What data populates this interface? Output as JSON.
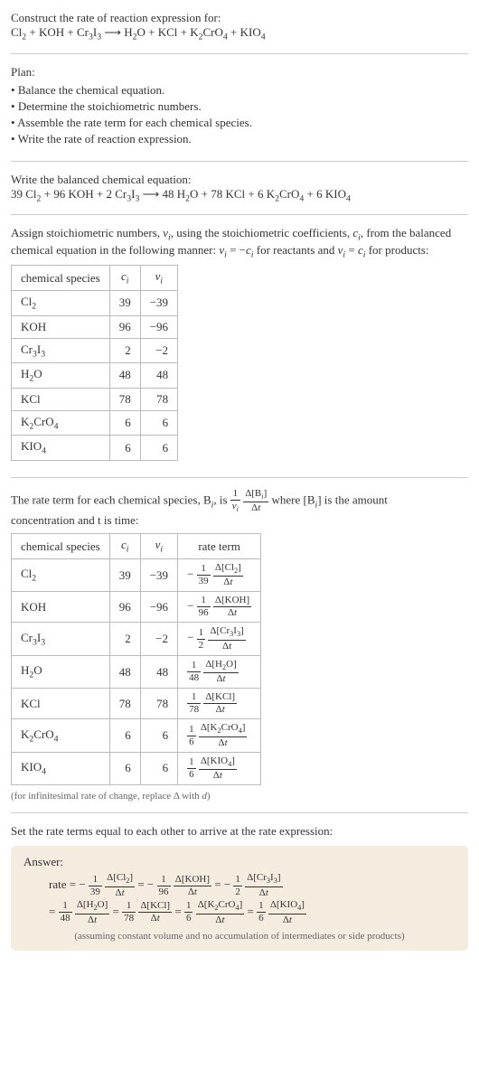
{
  "header": {
    "title": "Construct the rate of reaction expression for:",
    "equation_html": "Cl<sub>2</sub> + KOH + Cr<sub>3</sub>I<sub>3</sub>  ⟶  H<sub>2</sub>O + KCl + K<sub>2</sub>CrO<sub>4</sub> + KIO<sub>4</sub>"
  },
  "plan": {
    "heading": "Plan:",
    "items": [
      "Balance the chemical equation.",
      "Determine the stoichiometric numbers.",
      "Assemble the rate term for each chemical species.",
      "Write the rate of reaction expression."
    ]
  },
  "balanced": {
    "heading": "Write the balanced chemical equation:",
    "equation_html": "39 Cl<sub>2</sub> + 96 KOH + 2 Cr<sub>3</sub>I<sub>3</sub>  ⟶  48 H<sub>2</sub>O + 78 KCl + 6 K<sub>2</sub>CrO<sub>4</sub> + 6 KIO<sub>4</sub>"
  },
  "stoich": {
    "intro_html": "Assign stoichiometric numbers, <i>ν<sub>i</sub></i>, using the stoichiometric coefficients, <i>c<sub>i</sub></i>, from the balanced chemical equation in the following manner: <i>ν<sub>i</sub></i> = −<i>c<sub>i</sub></i> for reactants and <i>ν<sub>i</sub></i> = <i>c<sub>i</sub></i> for products:",
    "columns": [
      "chemical species",
      "c_i",
      "ν_i"
    ],
    "rows": [
      {
        "species_html": "Cl<sub>2</sub>",
        "c": "39",
        "v": "−39"
      },
      {
        "species_html": "KOH",
        "c": "96",
        "v": "−96"
      },
      {
        "species_html": "Cr<sub>3</sub>I<sub>3</sub>",
        "c": "2",
        "v": "−2"
      },
      {
        "species_html": "H<sub>2</sub>O",
        "c": "48",
        "v": "48"
      },
      {
        "species_html": "KCl",
        "c": "78",
        "v": "78"
      },
      {
        "species_html": "K<sub>2</sub>CrO<sub>4</sub>",
        "c": "6",
        "v": "6"
      },
      {
        "species_html": "KIO<sub>4</sub>",
        "c": "6",
        "v": "6"
      }
    ]
  },
  "rate_intro": {
    "line1_html": "The rate term for each chemical species, B<sub><i>i</i></sub>, is <span class=\"frac\"><span class=\"num\">1</span><span class=\"den\"><i>ν<sub>i</sub></i></span></span> <span class=\"frac\"><span class=\"num\">Δ[B<sub><i>i</i></sub>]</span><span class=\"den\">Δ<i>t</i></span></span> where [B<sub><i>i</i></sub>] is the amount",
    "line2": "concentration and t is time:",
    "columns": [
      "chemical species",
      "c_i",
      "ν_i",
      "rate term"
    ],
    "rows": [
      {
        "species_html": "Cl<sub>2</sub>",
        "c": "39",
        "v": "−39",
        "term_html": "− <span class=\"frac\"><span class=\"num\">1</span><span class=\"den\">39</span></span> <span class=\"frac\"><span class=\"num\">Δ[Cl<sub>2</sub>]</span><span class=\"den\">Δ<i>t</i></span></span>"
      },
      {
        "species_html": "KOH",
        "c": "96",
        "v": "−96",
        "term_html": "− <span class=\"frac\"><span class=\"num\">1</span><span class=\"den\">96</span></span> <span class=\"frac\"><span class=\"num\">Δ[KOH]</span><span class=\"den\">Δ<i>t</i></span></span>"
      },
      {
        "species_html": "Cr<sub>3</sub>I<sub>3</sub>",
        "c": "2",
        "v": "−2",
        "term_html": "− <span class=\"frac\"><span class=\"num\">1</span><span class=\"den\">2</span></span> <span class=\"frac\"><span class=\"num\">Δ[Cr<sub>3</sub>I<sub>3</sub>]</span><span class=\"den\">Δ<i>t</i></span></span>"
      },
      {
        "species_html": "H<sub>2</sub>O",
        "c": "48",
        "v": "48",
        "term_html": "<span class=\"frac\"><span class=\"num\">1</span><span class=\"den\">48</span></span> <span class=\"frac\"><span class=\"num\">Δ[H<sub>2</sub>O]</span><span class=\"den\">Δ<i>t</i></span></span>"
      },
      {
        "species_html": "KCl",
        "c": "78",
        "v": "78",
        "term_html": "<span class=\"frac\"><span class=\"num\">1</span><span class=\"den\">78</span></span> <span class=\"frac\"><span class=\"num\">Δ[KCl]</span><span class=\"den\">Δ<i>t</i></span></span>"
      },
      {
        "species_html": "K<sub>2</sub>CrO<sub>4</sub>",
        "c": "6",
        "v": "6",
        "term_html": "<span class=\"frac\"><span class=\"num\">1</span><span class=\"den\">6</span></span> <span class=\"frac\"><span class=\"num\">Δ[K<sub>2</sub>CrO<sub>4</sub>]</span><span class=\"den\">Δ<i>t</i></span></span>"
      },
      {
        "species_html": "KIO<sub>4</sub>",
        "c": "6",
        "v": "6",
        "term_html": "<span class=\"frac\"><span class=\"num\">1</span><span class=\"den\">6</span></span> <span class=\"frac\"><span class=\"num\">Δ[KIO<sub>4</sub>]</span><span class=\"den\">Δ<i>t</i></span></span>"
      }
    ],
    "footnote_html": "(for infinitesimal rate of change, replace Δ with <i>d</i>)"
  },
  "final": {
    "heading": "Set the rate terms equal to each other to arrive at the rate expression:",
    "answer_label": "Answer:",
    "rate_line1_html": "rate = − <span class=\"frac\"><span class=\"num\">1</span><span class=\"den\">39</span></span> <span class=\"frac\"><span class=\"num\">Δ[Cl<sub>2</sub>]</span><span class=\"den\">Δ<i>t</i></span></span> = − <span class=\"frac\"><span class=\"num\">1</span><span class=\"den\">96</span></span> <span class=\"frac\"><span class=\"num\">Δ[KOH]</span><span class=\"den\">Δ<i>t</i></span></span> = − <span class=\"frac\"><span class=\"num\">1</span><span class=\"den\">2</span></span> <span class=\"frac\"><span class=\"num\">Δ[Cr<sub>3</sub>I<sub>3</sub>]</span><span class=\"den\">Δ<i>t</i></span></span>",
    "rate_line2_html": "= <span class=\"frac\"><span class=\"num\">1</span><span class=\"den\">48</span></span> <span class=\"frac\"><span class=\"num\">Δ[H<sub>2</sub>O]</span><span class=\"den\">Δ<i>t</i></span></span> = <span class=\"frac\"><span class=\"num\">1</span><span class=\"den\">78</span></span> <span class=\"frac\"><span class=\"num\">Δ[KCl]</span><span class=\"den\">Δ<i>t</i></span></span> = <span class=\"frac\"><span class=\"num\">1</span><span class=\"den\">6</span></span> <span class=\"frac\"><span class=\"num\">Δ[K<sub>2</sub>CrO<sub>4</sub>]</span><span class=\"den\">Δ<i>t</i></span></span> = <span class=\"frac\"><span class=\"num\">1</span><span class=\"den\">6</span></span> <span class=\"frac\"><span class=\"num\">Δ[KIO<sub>4</sub>]</span><span class=\"den\">Δ<i>t</i></span></span>",
    "assumption": "(assuming constant volume and no accumulation of intermediates or side products)"
  },
  "colors": {
    "answer_bg": "#f5ece0",
    "border": "#bbbbbb",
    "text": "#333333",
    "note": "#666666"
  }
}
